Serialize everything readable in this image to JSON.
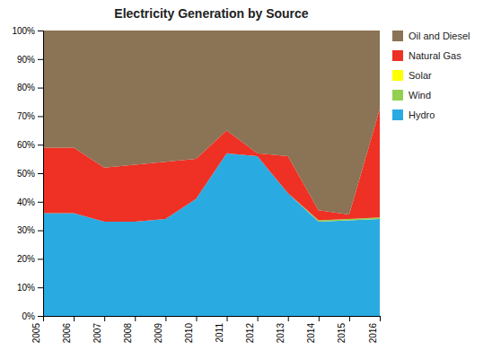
{
  "chart_data": {
    "type": "area",
    "stacked": true,
    "title": "Electricity Generation by Source",
    "x": [
      2005,
      2006,
      2007,
      2008,
      2009,
      2010,
      2011,
      2012,
      2013,
      2014,
      2015,
      2016
    ],
    "series": [
      {
        "name": "Hydro",
        "color": "#29ABE2",
        "values": [
          0.36,
          0.36,
          0.33,
          0.33,
          0.34,
          0.41,
          0.57,
          0.56,
          0.43,
          0.33,
          0.335,
          0.34
        ]
      },
      {
        "name": "Wind",
        "color": "#92D050",
        "values": [
          0.0,
          0.0,
          0.0,
          0.0,
          0.0,
          0.0,
          0.0,
          0.0,
          0.0,
          0.005,
          0.005,
          0.005
        ]
      },
      {
        "name": "Solar",
        "color": "#FFFF00",
        "values": [
          0.0,
          0.0,
          0.0,
          0.0,
          0.0,
          0.0,
          0.0,
          0.0,
          0.0,
          0.0,
          0.0,
          0.0
        ]
      },
      {
        "name": "Natural Gas",
        "color": "#EE3124",
        "values": [
          0.23,
          0.23,
          0.19,
          0.2,
          0.2,
          0.14,
          0.08,
          0.01,
          0.13,
          0.035,
          0.015,
          0.38
        ]
      },
      {
        "name": "Oil and Diesel",
        "color": "#8B7355",
        "values": [
          0.41,
          0.41,
          0.48,
          0.47,
          0.46,
          0.45,
          0.35,
          0.43,
          0.44,
          0.63,
          0.645,
          0.275
        ]
      }
    ],
    "xlim": [
      2005,
      2016
    ],
    "xticks": [
      2005,
      2006,
      2007,
      2008,
      2009,
      2010,
      2011,
      2012,
      2013,
      2014,
      2015,
      2016
    ],
    "ylim": [
      0,
      1
    ],
    "yticks": [
      {
        "value": 0.0,
        "label": "0%"
      },
      {
        "value": 0.1,
        "label": "10%"
      },
      {
        "value": 0.2,
        "label": "20%"
      },
      {
        "value": 0.3,
        "label": "30%"
      },
      {
        "value": 0.4,
        "label": "40%"
      },
      {
        "value": 0.5,
        "label": "50%"
      },
      {
        "value": 0.6,
        "label": "60%"
      },
      {
        "value": 0.7,
        "label": "70%"
      },
      {
        "value": 0.8,
        "label": "80%"
      },
      {
        "value": 0.9,
        "label": "90%"
      },
      {
        "value": 1.0,
        "label": "100%"
      }
    ],
    "grid": false,
    "legend": "right"
  }
}
